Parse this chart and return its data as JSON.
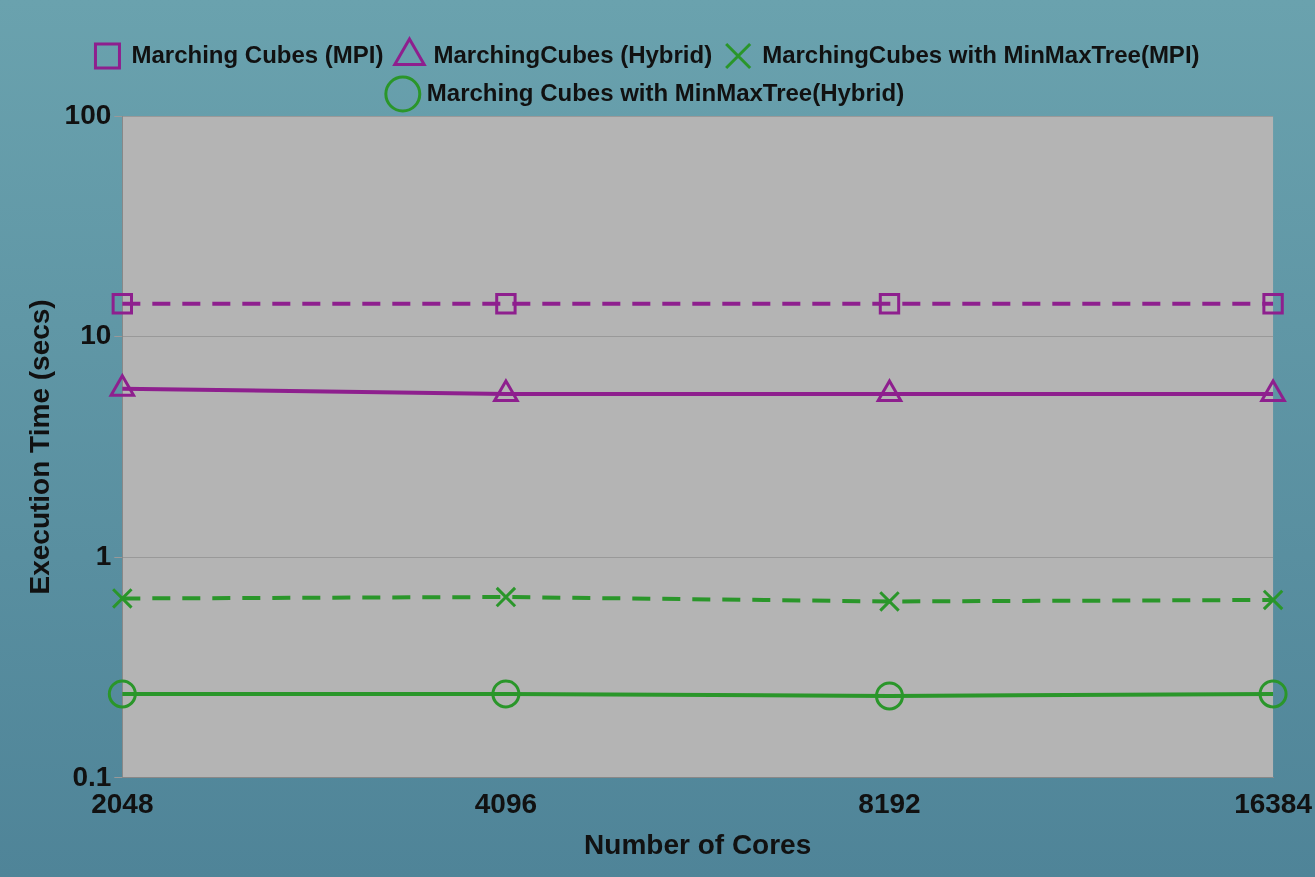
{
  "chart_data": {
    "type": "line",
    "xlabel": "Number of Cores",
    "ylabel": "Execution Time (secs)",
    "categories": [
      "2048",
      "4096",
      "8192",
      "16384"
    ],
    "series": [
      {
        "name": "Marching Cubes (MPI)",
        "color": "#8e1f8e",
        "marker": "square",
        "line_style": "dashed",
        "values": [
          14.1,
          14.1,
          14.1,
          14.1
        ]
      },
      {
        "name": "MarchingCubes (Hybrid)",
        "color": "#8e1f8e",
        "marker": "triangle",
        "line_style": "solid",
        "values": [
          5.8,
          5.5,
          5.5,
          5.5
        ]
      },
      {
        "name": "MarchingCubes with MinMaxTree(MPI)",
        "color": "#2a962a",
        "marker": "cross",
        "line_style": "dashed",
        "values": [
          0.65,
          0.66,
          0.63,
          0.64
        ]
      },
      {
        "name": "Marching Cubes with MinMaxTree(Hybrid)",
        "color": "#2a962a",
        "marker": "circle",
        "line_style": "solid",
        "values": [
          0.24,
          0.24,
          0.235,
          0.24
        ]
      }
    ],
    "log": true,
    "ylim": [
      0.1,
      100
    ],
    "yticks": [
      0.1,
      1,
      10,
      100
    ],
    "grid": "y",
    "legend": "top"
  }
}
